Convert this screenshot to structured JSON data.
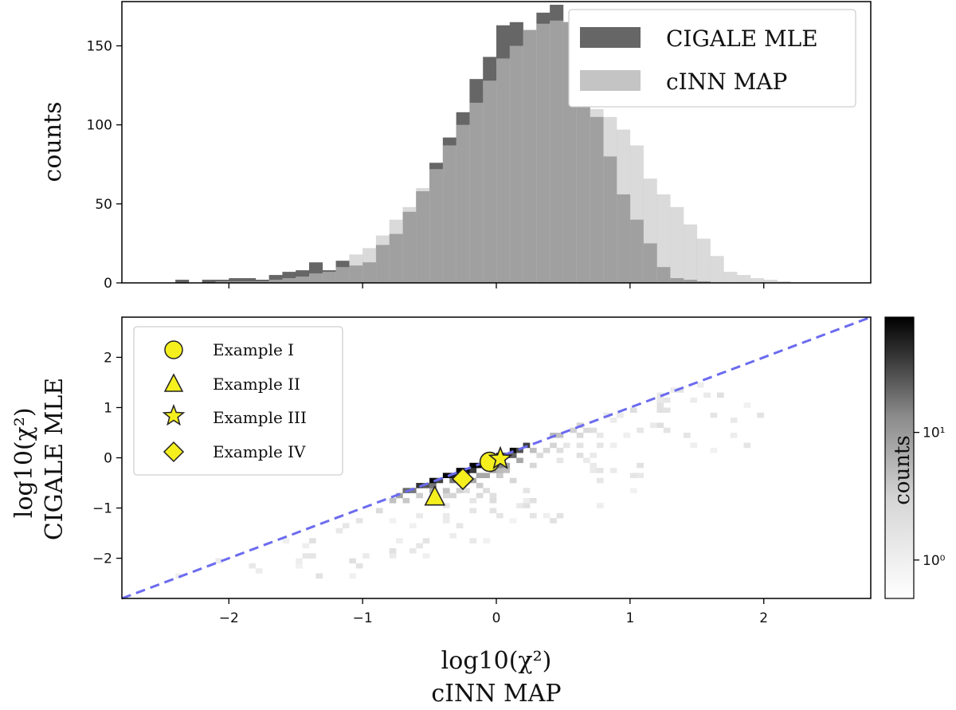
{
  "chart_data": [
    {
      "type": "histogram",
      "panel": "top",
      "ylabel": "counts",
      "xlim": [
        -2.8,
        2.8
      ],
      "ylim": [
        0,
        178
      ],
      "yticks": [
        "0",
        "50",
        "100",
        "150"
      ],
      "ytick_values": [
        0,
        50,
        100,
        150
      ],
      "bin_width": 0.1,
      "series": [
        {
          "name": "CIGALE MLE",
          "color": "#666666",
          "bins_start": -2.4,
          "values": [
            2,
            0,
            2,
            2,
            3,
            3,
            2,
            5,
            7,
            8,
            13,
            8,
            14,
            11,
            13,
            24,
            31,
            45,
            58,
            76,
            92,
            108,
            129,
            143,
            163,
            165,
            160,
            171,
            176,
            165,
            140,
            105,
            80,
            56,
            40,
            25,
            10,
            3,
            2,
            1,
            0,
            0
          ]
        },
        {
          "name": "cINN MAP",
          "color": "#c4c4c4",
          "bins_start": -2.4,
          "values": [
            0,
            0,
            0,
            1,
            1,
            1,
            1,
            2,
            3,
            4,
            6,
            7,
            10,
            18,
            22,
            30,
            40,
            48,
            60,
            72,
            87,
            100,
            114,
            128,
            142,
            150,
            160,
            164,
            166,
            165,
            120,
            110,
            105,
            97,
            87,
            66,
            56,
            48,
            37,
            28,
            17,
            7,
            5,
            3,
            2,
            1
          ]
        }
      ],
      "legend": [
        "CIGALE MLE",
        "cINN MAP"
      ],
      "legend_position": "top-right"
    },
    {
      "type": "heatmap",
      "panel": "bottom",
      "xlabel": "log10(χ²)",
      "xlabel_line2": "cINN MAP",
      "ylabel": "log10(χ²)",
      "ylabel_line2": "CIGALE MLE",
      "xlim": [
        -2.8,
        2.8
      ],
      "ylim": [
        -2.8,
        2.8
      ],
      "xticks": [
        "−2",
        "−1",
        "0",
        "1",
        "2"
      ],
      "xtick_values": [
        -2,
        -1,
        0,
        1,
        2
      ],
      "yticks": [
        "−2",
        "−1",
        "0",
        "1",
        "2"
      ],
      "ytick_values": [
        -2,
        -1,
        0,
        1,
        2
      ],
      "reference_line": {
        "slope": 1,
        "intercept": 0,
        "style": "dashed",
        "color": "#6b6bf0"
      },
      "colorbar": {
        "label": "counts",
        "scale": "log",
        "tick_labels": [
          "10⁰",
          "10¹"
        ],
        "tick_values": [
          1,
          10
        ],
        "range": [
          0.5,
          80
        ]
      },
      "markers": [
        {
          "name": "Example I",
          "shape": "circle",
          "x": -0.05,
          "y": -0.08
        },
        {
          "name": "Example II",
          "shape": "triangle",
          "x": -0.46,
          "y": -0.78
        },
        {
          "name": "Example III",
          "shape": "star",
          "x": 0.03,
          "y": -0.02
        },
        {
          "name": "Example IV",
          "shape": "diamond",
          "x": -0.25,
          "y": -0.42
        }
      ],
      "marker_color": "#f5ef1e",
      "legend": [
        "Example I",
        "Example II",
        "Example III",
        "Example IV"
      ],
      "legend_position": "top-left"
    }
  ]
}
